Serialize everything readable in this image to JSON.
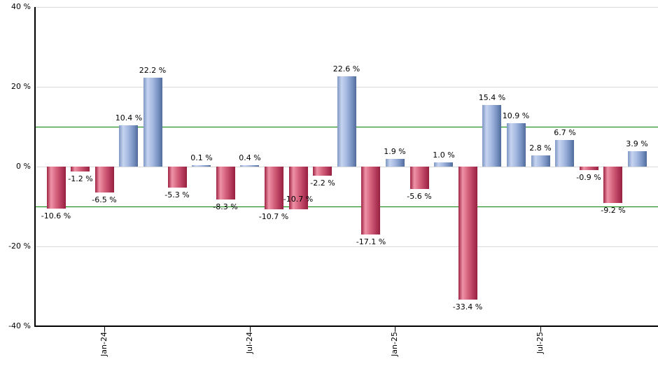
{
  "chart_data": {
    "type": "bar",
    "title": "",
    "value_unit": "%",
    "grid": "on",
    "legend": "none",
    "y_axis": {
      "min": -40,
      "max": 40,
      "ticks": [
        {
          "value": 40,
          "label": "40 %"
        },
        {
          "value": 20,
          "label": "20 %"
        },
        {
          "value": 0,
          "label": "0 %"
        },
        {
          "value": -20,
          "label": "-20 %"
        },
        {
          "value": -40,
          "label": "-40 %"
        }
      ]
    },
    "x_axis": {
      "ticks": [
        {
          "index": 2,
          "label": "Jan-24"
        },
        {
          "index": 8,
          "label": "Jul-24"
        },
        {
          "index": 14,
          "label": "Jan-25"
        },
        {
          "index": 20,
          "label": "Jul-25"
        }
      ]
    },
    "reference_lines": [
      {
        "value": 10,
        "color": "#008000"
      },
      {
        "value": -10,
        "color": "#008000"
      }
    ],
    "points": [
      {
        "value": -10.6,
        "label": "-10.6 %"
      },
      {
        "value": -1.2,
        "label": "-1.2 %"
      },
      {
        "value": -6.5,
        "label": "-6.5 %"
      },
      {
        "value": 10.4,
        "label": "10.4 %"
      },
      {
        "value": 22.2,
        "label": "22.2 %"
      },
      {
        "value": -5.3,
        "label": "-5.3 %"
      },
      {
        "value": 0.1,
        "label": "0.1 %"
      },
      {
        "value": -8.3,
        "label": "-8.3 %"
      },
      {
        "value": 0.4,
        "label": "0.4 %"
      },
      {
        "value": -10.7,
        "label": "-10.7 %"
      },
      {
        "value": -10.7,
        "label": "-10.7 %",
        "label_dy": -25
      },
      {
        "value": -2.2,
        "label": "-2.2 %"
      },
      {
        "value": 22.6,
        "label": "22.6 %"
      },
      {
        "value": -17.1,
        "label": "-17.1 %"
      },
      {
        "value": 1.9,
        "label": "1.9 %"
      },
      {
        "value": -5.6,
        "label": "-5.6 %"
      },
      {
        "value": 1.0,
        "label": "1.0 %"
      },
      {
        "value": -33.4,
        "label": "-33.4 %"
      },
      {
        "value": 15.4,
        "label": "15.4 %"
      },
      {
        "value": 10.9,
        "label": "10.9 %"
      },
      {
        "value": 2.8,
        "label": "2.8 %"
      },
      {
        "value": 6.7,
        "label": "6.7 %"
      },
      {
        "value": -0.9,
        "label": "-0.9 %"
      },
      {
        "value": -9.2,
        "label": "-9.2 %"
      },
      {
        "value": 3.9,
        "label": "3.9 %"
      }
    ],
    "colors": {
      "positive_gradient": [
        "#7e97c4",
        "#c6d4f0",
        "#a3b7df",
        "#7690c0",
        "#506c9b"
      ],
      "negative_gradient": [
        "#9e2242",
        "#ef93a8",
        "#d4627c",
        "#b43a5b",
        "#97203f"
      ],
      "gradient_stops_pct": [
        0,
        22,
        50,
        78,
        100
      ],
      "grid": "#d9d9d9",
      "axis": "#000000",
      "reference": "#008000",
      "label": "#000000",
      "background": "#ffffff"
    }
  }
}
